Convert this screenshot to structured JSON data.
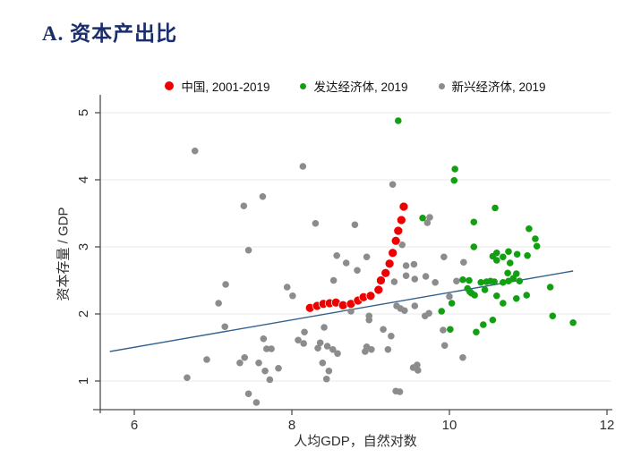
{
  "title": "A. 资本产出比",
  "legend": {
    "items": [
      {
        "label": "中国, 2001-2019",
        "color": "#ee0000",
        "size": 10
      },
      {
        "label": "发达经济体, 2019",
        "color": "#12a012",
        "size": 7
      },
      {
        "label": "新兴经济体, 2019",
        "color": "#8c8c8c",
        "size": 7
      }
    ]
  },
  "axes": {
    "xlabel": "人均GDP，自然对数",
    "ylabel": "资本存量 / GDP"
  },
  "chart_data": {
    "type": "scatter",
    "title": "A. 资本产出比",
    "xlabel": "人均GDP，自然对数",
    "ylabel": "资本存量 / GDP",
    "xlim": [
      5.57,
      12.05
    ],
    "ylim": [
      0.57,
      5.27
    ],
    "xticks": [
      6,
      8,
      10,
      12
    ],
    "yticks": [
      1,
      2,
      3,
      4,
      5
    ],
    "grid": "horizontal-only",
    "legend_position": "top-center",
    "colors": {
      "axis": "#4d4d4d",
      "tick_label": "#2e2e2e",
      "grid": "#e8eaea"
    },
    "trendline": {
      "x1": 5.69,
      "y1": 1.44,
      "x2": 11.57,
      "y2": 2.64,
      "color": "#31618e",
      "width": 1.4
    },
    "series": [
      {
        "id": "china",
        "name": "中国, 2001-2019",
        "color": "#ee0000",
        "marker_size": 10,
        "stroke": "#ffffff",
        "stroke_width": 0.7,
        "points": [
          [
            8.23,
            2.09
          ],
          [
            8.32,
            2.12
          ],
          [
            8.4,
            2.15
          ],
          [
            8.48,
            2.16
          ],
          [
            8.56,
            2.17
          ],
          [
            8.65,
            2.13
          ],
          [
            8.75,
            2.15
          ],
          [
            8.84,
            2.2
          ],
          [
            8.91,
            2.25
          ],
          [
            9.0,
            2.27
          ],
          [
            9.1,
            2.36
          ],
          [
            9.13,
            2.5
          ],
          [
            9.19,
            2.61
          ],
          [
            9.24,
            2.75
          ],
          [
            9.28,
            2.91
          ],
          [
            9.32,
            3.09
          ],
          [
            9.35,
            3.24
          ],
          [
            9.39,
            3.4
          ],
          [
            9.42,
            3.6
          ]
        ]
      },
      {
        "id": "developed",
        "name": "发达经济体, 2019",
        "color": "#12a012",
        "marker_size": 7.6,
        "points": [
          [
            9.35,
            4.88
          ],
          [
            10.07,
            4.16
          ],
          [
            10.06,
            3.99
          ],
          [
            9.66,
            3.43
          ],
          [
            10.58,
            3.58
          ],
          [
            10.31,
            3.37
          ],
          [
            11.01,
            3.27
          ],
          [
            11.09,
            3.12
          ],
          [
            10.31,
            3.0
          ],
          [
            11.11,
            3.01
          ],
          [
            10.6,
            2.91
          ],
          [
            10.55,
            2.86
          ],
          [
            10.68,
            2.85
          ],
          [
            10.75,
            2.93
          ],
          [
            10.86,
            2.89
          ],
          [
            10.99,
            2.87
          ],
          [
            10.6,
            2.8
          ],
          [
            10.77,
            2.76
          ],
          [
            10.17,
            2.51
          ],
          [
            10.25,
            2.5
          ],
          [
            10.23,
            2.38
          ],
          [
            10.26,
            2.33
          ],
          [
            10.28,
            2.31
          ],
          [
            10.32,
            2.28
          ],
          [
            10.03,
            2.16
          ],
          [
            9.9,
            2.04
          ],
          [
            10.45,
            2.36
          ],
          [
            10.4,
            2.47
          ],
          [
            10.47,
            2.48
          ],
          [
            10.52,
            2.49
          ],
          [
            10.57,
            2.48
          ],
          [
            10.68,
            2.47
          ],
          [
            10.74,
            2.61
          ],
          [
            10.75,
            2.49
          ],
          [
            10.81,
            2.53
          ],
          [
            10.85,
            2.6
          ],
          [
            10.89,
            2.49
          ],
          [
            10.6,
            2.27
          ],
          [
            10.68,
            2.16
          ],
          [
            10.85,
            2.23
          ],
          [
            10.98,
            2.28
          ],
          [
            11.28,
            2.4
          ],
          [
            11.31,
            1.97
          ],
          [
            11.57,
            1.87
          ],
          [
            10.55,
            1.91
          ],
          [
            10.43,
            1.84
          ],
          [
            10.34,
            1.73
          ],
          [
            10.01,
            1.77
          ]
        ]
      },
      {
        "id": "emerging",
        "name": "新兴经济体, 2019",
        "color": "#8c8c8c",
        "marker_size": 7.6,
        "points": [
          [
            6.77,
            4.43
          ],
          [
            8.14,
            4.2
          ],
          [
            9.28,
            3.93
          ],
          [
            7.63,
            3.75
          ],
          [
            7.39,
            3.61
          ],
          [
            9.75,
            3.44
          ],
          [
            9.72,
            3.36
          ],
          [
            8.3,
            3.35
          ],
          [
            8.8,
            3.33
          ],
          [
            9.4,
            3.03
          ],
          [
            7.45,
            2.95
          ],
          [
            8.57,
            2.87
          ],
          [
            8.95,
            2.85
          ],
          [
            9.93,
            2.85
          ],
          [
            10.18,
            2.77
          ],
          [
            8.69,
            2.76
          ],
          [
            8.83,
            2.65
          ],
          [
            9.45,
            2.72
          ],
          [
            9.55,
            2.74
          ],
          [
            9.45,
            2.57
          ],
          [
            9.56,
            2.52
          ],
          [
            8.53,
            2.5
          ],
          [
            9.3,
            2.48
          ],
          [
            9.7,
            2.56
          ],
          [
            9.82,
            2.47
          ],
          [
            10.09,
            2.49
          ],
          [
            7.16,
            2.44
          ],
          [
            7.94,
            2.4
          ],
          [
            8.01,
            2.27
          ],
          [
            10.0,
            2.26
          ],
          [
            7.07,
            2.16
          ],
          [
            9.33,
            2.12
          ],
          [
            9.38,
            2.08
          ],
          [
            9.43,
            2.05
          ],
          [
            9.56,
            2.12
          ],
          [
            8.75,
            2.04
          ],
          [
            9.69,
            1.97
          ],
          [
            9.74,
            2.01
          ],
          [
            8.98,
            1.97
          ],
          [
            8.98,
            1.91
          ],
          [
            7.15,
            1.81
          ],
          [
            8.41,
            1.8
          ],
          [
            9.16,
            1.77
          ],
          [
            9.92,
            1.76
          ],
          [
            8.16,
            1.73
          ],
          [
            9.26,
            1.67
          ],
          [
            7.64,
            1.63
          ],
          [
            8.08,
            1.61
          ],
          [
            8.36,
            1.57
          ],
          [
            8.15,
            1.56
          ],
          [
            8.45,
            1.52
          ],
          [
            8.52,
            1.47
          ],
          [
            8.58,
            1.41
          ],
          [
            7.68,
            1.48
          ],
          [
            7.74,
            1.48
          ],
          [
            8.33,
            1.49
          ],
          [
            9.94,
            1.53
          ],
          [
            8.95,
            1.51
          ],
          [
            9.01,
            1.47
          ],
          [
            8.93,
            1.44
          ],
          [
            9.22,
            1.47
          ],
          [
            7.4,
            1.35
          ],
          [
            10.17,
            1.35
          ],
          [
            7.34,
            1.27
          ],
          [
            7.58,
            1.27
          ],
          [
            8.39,
            1.27
          ],
          [
            6.92,
            1.32
          ],
          [
            8.47,
            1.15
          ],
          [
            7.66,
            1.15
          ],
          [
            7.83,
            1.19
          ],
          [
            9.54,
            1.2
          ],
          [
            9.59,
            1.24
          ],
          [
            9.6,
            1.16
          ],
          [
            8.44,
            1.03
          ],
          [
            7.72,
            1.02
          ],
          [
            6.67,
            1.05
          ],
          [
            9.32,
            0.85
          ],
          [
            9.37,
            0.84
          ],
          [
            7.45,
            0.81
          ],
          [
            7.55,
            0.68
          ]
        ]
      }
    ]
  }
}
